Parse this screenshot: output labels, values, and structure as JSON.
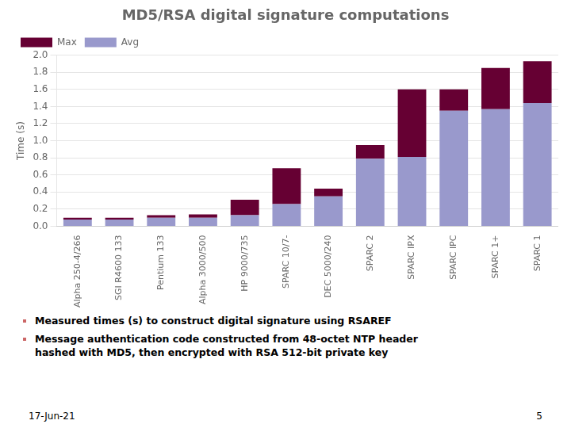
{
  "chart_data": {
    "type": "bar",
    "title": "MD5/RSA digital signature computations",
    "ylabel": "Time (s)",
    "categories": [
      "Alpha 250-4/266",
      "SGI R4600 133",
      "Pentium 133",
      "Alpha 3000/500",
      "HP 9000/735",
      "SPARC 10/7-",
      "DEC 5000/240",
      "SPARC 2",
      "SPARC IPX",
      "SPARC IPC",
      "SPARC 1+",
      "SPARC 1"
    ],
    "series": [
      {
        "name": "Avg",
        "color": "#9999cc",
        "values": [
          0.08,
          0.08,
          0.1,
          0.1,
          0.13,
          0.26,
          0.35,
          0.79,
          0.81,
          1.35,
          1.37,
          1.44
        ]
      },
      {
        "name": "Max",
        "color": "#660033",
        "values": [
          0.02,
          0.02,
          0.03,
          0.04,
          0.18,
          0.42,
          0.09,
          0.16,
          0.79,
          0.25,
          0.48,
          0.49
        ]
      }
    ],
    "stacked": true,
    "ylim": [
      0.0,
      2.0
    ],
    "yticks": [
      {
        "value": 0.0,
        "label": "0.0"
      },
      0.2,
      0.4,
      0.6,
      0.8,
      {
        "value": 1.0,
        "label": "1.0"
      },
      1.2,
      1.4,
      1.6,
      1.8,
      {
        "value": 2.0,
        "label": "2.0"
      }
    ],
    "grid": true,
    "legend": "upper left",
    "annotations": [
      "Measured times (s) to construct digital signature using RSAREF",
      "Message authentication code constructed from 48-octet NTP header\nhashed with MD5, then encrypted with RSA 512-bit private key"
    ],
    "footer_left": "17-Jun-21",
    "footer_right": "5"
  }
}
